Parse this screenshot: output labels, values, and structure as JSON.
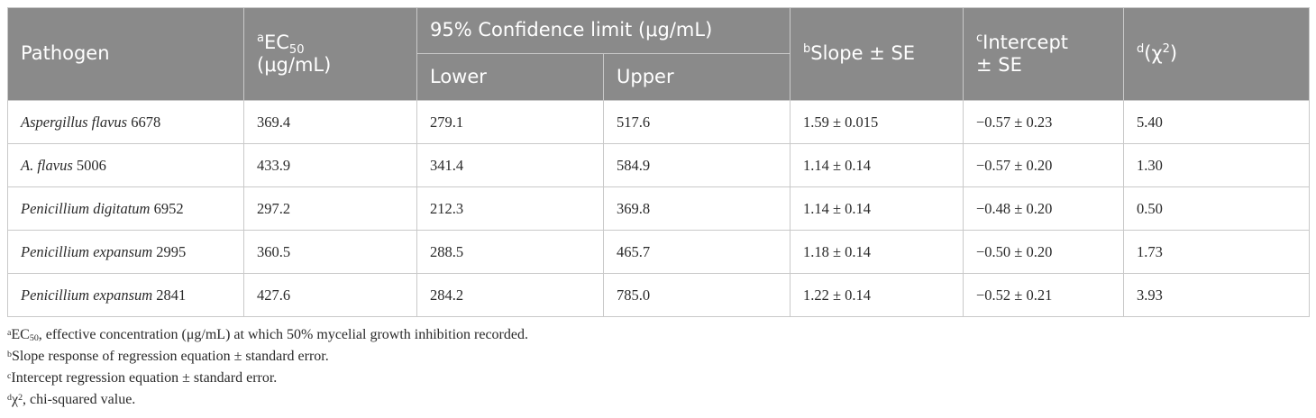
{
  "table": {
    "headers": {
      "pathogen": "Pathogen",
      "ec50": {
        "sup": "a",
        "main": "EC",
        "sub": "50",
        "unit": "(μg/mL)"
      },
      "confidence": "95% Confidence limit (μg/mL)",
      "lower": "Lower",
      "upper": "Upper",
      "slope": {
        "sup": "b",
        "text": "Slope ± SE"
      },
      "intercept": {
        "sup": "c",
        "line1": "Intercept",
        "line2": "± SE"
      },
      "chi": {
        "sup": "d",
        "open": "(χ",
        "exp": "2",
        "close": ")"
      }
    },
    "rows": [
      {
        "genus": "Aspergillus flavus",
        "strain": "6678",
        "ec50": "369.4",
        "lower": "279.1",
        "upper": "517.6",
        "slope": "1.59 ± 0.015",
        "intercept": "−0.57 ± 0.23",
        "chi": "5.40"
      },
      {
        "genus": "A. flavus",
        "strain": "5006",
        "ec50": "433.9",
        "lower": "341.4",
        "upper": "584.9",
        "slope": "1.14 ± 0.14",
        "intercept": "−0.57 ± 0.20",
        "chi": "1.30"
      },
      {
        "genus": "Penicillium digitatum",
        "strain": "6952",
        "ec50": "297.2",
        "lower": "212.3",
        "upper": "369.8",
        "slope": "1.14 ± 0.14",
        "intercept": "−0.48 ± 0.20",
        "chi": "0.50"
      },
      {
        "genus": "Penicillium expansum",
        "strain": "2995",
        "ec50": "360.5",
        "lower": "288.5",
        "upper": "465.7",
        "slope": "1.18 ± 0.14",
        "intercept": "−0.50 ± 0.20",
        "chi": "1.73"
      },
      {
        "genus": "Penicillium expansum",
        "strain": "2841",
        "ec50": "427.6",
        "lower": "284.2",
        "upper": "785.0",
        "slope": "1.22 ± 0.14",
        "intercept": "−0.52 ± 0.21",
        "chi": "3.93"
      }
    ]
  },
  "footnotes": {
    "a": {
      "mark": "a",
      "term": "EC",
      "sub": "50",
      "text": ", effective concentration (μg/mL) at which 50% mycelial growth inhibition recorded."
    },
    "b": {
      "mark": "b",
      "text": "Slope response of regression equation ± standard error."
    },
    "c": {
      "mark": "c",
      "text": "Intercept regression equation ± standard error."
    },
    "d": {
      "mark": "d",
      "term": "χ",
      "sup": "2",
      "text": ", chi-squared value."
    }
  }
}
